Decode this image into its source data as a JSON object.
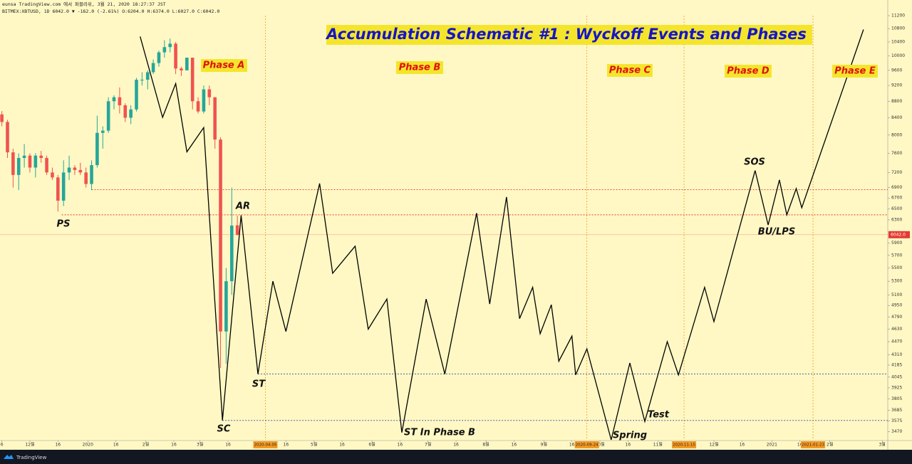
{
  "chart_data": {
    "type": "candlestick",
    "title": "Accumulation Schematic #1 : Wyckoff Events and Phases",
    "header_lines": [
      "eunsa TradingView.com 에서 퍼블리쉬, 3월 21, 2020 18:27:37 JST",
      "BITMEX:XBTUSD, 1D 6042.0 ▼ -162.0 (-2.61%) O:6204.0 H:6374.0 L:6027.0 C:6042.0"
    ],
    "ylog": true,
    "xlim": [
      "2019-11-15",
      "2021-03-04"
    ],
    "ylim": [
      3390,
      11200
    ],
    "yticks": [
      3470,
      3575,
      3685,
      3805,
      3925,
      4045,
      4185,
      4310,
      4470,
      4630,
      4790,
      4950,
      5100,
      5300,
      5500,
      5700,
      5900,
      6300,
      6500,
      6700,
      6900,
      7200,
      7600,
      8000,
      8400,
      8800,
      9200,
      9600,
      10000,
      10400,
      10800,
      11200
    ],
    "xticks": [
      {
        "value": "2019-11-16",
        "label": "6"
      },
      {
        "value": "2019-12-01",
        "label": "12월"
      },
      {
        "value": "2019-12-16",
        "label": "16"
      },
      {
        "value": "2020-01-01",
        "label": "2020"
      },
      {
        "value": "2020-01-16",
        "label": "16"
      },
      {
        "value": "2020-02-01",
        "label": "2월"
      },
      {
        "value": "2020-02-16",
        "label": "16"
      },
      {
        "value": "2020-03-01",
        "label": "3월"
      },
      {
        "value": "2020-03-16",
        "label": "16"
      },
      {
        "value": "2020-04-16",
        "label": "16"
      },
      {
        "value": "2020-05-01",
        "label": "5월"
      },
      {
        "value": "2020-05-16",
        "label": "16"
      },
      {
        "value": "2020-06-01",
        "label": "6월"
      },
      {
        "value": "2020-06-16",
        "label": "16"
      },
      {
        "value": "2020-07-01",
        "label": "7월"
      },
      {
        "value": "2020-07-16",
        "label": "16"
      },
      {
        "value": "2020-08-01",
        "label": "8월"
      },
      {
        "value": "2020-08-16",
        "label": "16"
      },
      {
        "value": "2020-09-01",
        "label": "9월"
      },
      {
        "value": "2020-09-16",
        "label": "16"
      },
      {
        "value": "2020-10-01",
        "label": "10월"
      },
      {
        "value": "2020-10-16",
        "label": "16"
      },
      {
        "value": "2020-11-01",
        "label": "11월"
      },
      {
        "value": "2020-12-01",
        "label": "12월"
      },
      {
        "value": "2020-12-16",
        "label": "16"
      },
      {
        "value": "2021-01-01",
        "label": "2021"
      },
      {
        "value": "2021-01-16",
        "label": "16"
      },
      {
        "value": "2021-02-01",
        "label": "2월"
      },
      {
        "value": "2021-03-01",
        "label": "3월"
      }
    ],
    "phase_boundaries": [
      "2020-04-05",
      "2020-09-24",
      "2020-11-15",
      "2021-01-23"
    ],
    "phases": [
      "Phase A",
      "Phase B",
      "Phase C",
      "Phase D",
      "Phase E"
    ],
    "events": [
      "PS",
      "AR",
      "SC",
      "ST",
      "ST In Phase B",
      "Spring",
      "Test",
      "SOS",
      "BU/LPS"
    ],
    "last_price": {
      "value": 6042,
      "label": "6042.0"
    },
    "up_color": "#26a69a",
    "down_color": "#ef5350",
    "candles": [
      {
        "date": "2019-11-16",
        "open": 8480,
        "high": 8560,
        "low": 8200,
        "close": 8300
      },
      {
        "date": "2019-11-19",
        "open": 8300,
        "high": 8350,
        "low": 7500,
        "close": 7620
      },
      {
        "date": "2019-11-22",
        "open": 7620,
        "high": 7700,
        "low": 6900,
        "close": 7150
      },
      {
        "date": "2019-11-25",
        "open": 7150,
        "high": 7600,
        "low": 6850,
        "close": 7500
      },
      {
        "date": "2019-11-28",
        "open": 7500,
        "high": 7800,
        "low": 7300,
        "close": 7550
      },
      {
        "date": "2019-12-01",
        "open": 7550,
        "high": 7600,
        "low": 7200,
        "close": 7300
      },
      {
        "date": "2019-12-04",
        "open": 7300,
        "high": 7600,
        "low": 7100,
        "close": 7550
      },
      {
        "date": "2019-12-07",
        "open": 7550,
        "high": 7650,
        "low": 7400,
        "close": 7500
      },
      {
        "date": "2019-12-10",
        "open": 7500,
        "high": 7550,
        "low": 7150,
        "close": 7200
      },
      {
        "date": "2019-12-13",
        "open": 7200,
        "high": 7300,
        "low": 7050,
        "close": 7100
      },
      {
        "date": "2019-12-16",
        "open": 7100,
        "high": 7150,
        "low": 6450,
        "close": 6650
      },
      {
        "date": "2019-12-19",
        "open": 6650,
        "high": 7450,
        "low": 6550,
        "close": 7200
      },
      {
        "date": "2019-12-22",
        "open": 7200,
        "high": 7550,
        "low": 7050,
        "close": 7300
      },
      {
        "date": "2019-12-25",
        "open": 7300,
        "high": 7350,
        "low": 7150,
        "close": 7250
      },
      {
        "date": "2019-12-28",
        "open": 7250,
        "high": 7400,
        "low": 7150,
        "close": 7200
      },
      {
        "date": "2019-12-31",
        "open": 7200,
        "high": 7300,
        "low": 6900,
        "close": 6970
      },
      {
        "date": "2020-01-03",
        "open": 6970,
        "high": 7450,
        "low": 6850,
        "close": 7350
      },
      {
        "date": "2020-01-06",
        "open": 7350,
        "high": 8450,
        "low": 7300,
        "close": 8050
      },
      {
        "date": "2020-01-09",
        "open": 8050,
        "high": 8200,
        "low": 7700,
        "close": 8100
      },
      {
        "date": "2020-01-12",
        "open": 8100,
        "high": 8900,
        "low": 8050,
        "close": 8800
      },
      {
        "date": "2020-01-15",
        "open": 8800,
        "high": 8950,
        "low": 8600,
        "close": 8900
      },
      {
        "date": "2020-01-18",
        "open": 8900,
        "high": 9150,
        "low": 8500,
        "close": 8700
      },
      {
        "date": "2020-01-21",
        "open": 8700,
        "high": 8750,
        "low": 8300,
        "close": 8400
      },
      {
        "date": "2020-01-24",
        "open": 8400,
        "high": 8700,
        "low": 8250,
        "close": 8600
      },
      {
        "date": "2020-01-27",
        "open": 8600,
        "high": 9400,
        "low": 8550,
        "close": 9350
      },
      {
        "date": "2020-01-30",
        "open": 9350,
        "high": 9550,
        "low": 9200,
        "close": 9350
      },
      {
        "date": "2020-02-02",
        "open": 9350,
        "high": 9600,
        "low": 9100,
        "close": 9550
      },
      {
        "date": "2020-02-05",
        "open": 9550,
        "high": 9900,
        "low": 9500,
        "close": 9800
      },
      {
        "date": "2020-02-08",
        "open": 9800,
        "high": 10150,
        "low": 9700,
        "close": 10100
      },
      {
        "date": "2020-02-11",
        "open": 10100,
        "high": 10450,
        "low": 9950,
        "close": 10250
      },
      {
        "date": "2020-02-14",
        "open": 10250,
        "high": 10500,
        "low": 10100,
        "close": 10350
      },
      {
        "date": "2020-02-17",
        "open": 10350,
        "high": 10400,
        "low": 9500,
        "close": 9650
      },
      {
        "date": "2020-02-20",
        "open": 9650,
        "high": 9700,
        "low": 9450,
        "close": 9600
      },
      {
        "date": "2020-02-23",
        "open": 9600,
        "high": 9950,
        "low": 9600,
        "close": 9950
      },
      {
        "date": "2020-02-26",
        "open": 9950,
        "high": 9950,
        "low": 8600,
        "close": 8800
      },
      {
        "date": "2020-02-29",
        "open": 8800,
        "high": 8900,
        "low": 8500,
        "close": 8550
      },
      {
        "date": "2020-03-03",
        "open": 8550,
        "high": 9200,
        "low": 8500,
        "close": 9100
      },
      {
        "date": "2020-03-06",
        "open": 9100,
        "high": 9200,
        "low": 8700,
        "close": 8900
      },
      {
        "date": "2020-03-09",
        "open": 8900,
        "high": 8900,
        "low": 7700,
        "close": 7900
      },
      {
        "date": "2020-03-12",
        "open": 7900,
        "high": 7950,
        "low": 4150,
        "close": 4600
      },
      {
        "date": "2020-03-15",
        "open": 4600,
        "high": 5500,
        "low": 4200,
        "close": 5300
      },
      {
        "date": "2020-03-18",
        "open": 5300,
        "high": 6900,
        "low": 5100,
        "close": 6200
      },
      {
        "date": "2020-03-21",
        "open": 6204,
        "high": 6374,
        "low": 6027,
        "close": 6042
      }
    ],
    "schematic": {
      "color": "#000000",
      "x": [
        "2020-01-29",
        "2020-02-10",
        "2020-02-17",
        "2020-02-23",
        "2020-03-03",
        "2020-03-13",
        "2020-03-23",
        "2020-04-01",
        "2020-04-09",
        "2020-04-16",
        "2020-05-04",
        "2020-05-11",
        "2020-05-23",
        "2020-05-30",
        "2020-06-09",
        "2020-06-17",
        "2020-06-30",
        "2020-07-10",
        "2020-07-27",
        "2020-08-03",
        "2020-08-12",
        "2020-08-19",
        "2020-08-26",
        "2020-08-30",
        "2020-09-05",
        "2020-09-09",
        "2020-09-16",
        "2020-09-18",
        "2020-09-24",
        "2020-10-07",
        "2020-10-17",
        "2020-10-25",
        "2020-11-06",
        "2020-11-12",
        "2020-11-26",
        "2020-12-01",
        "2020-12-23",
        "2020-12-30",
        "2021-01-05",
        "2021-01-09",
        "2021-01-14",
        "2021-01-17",
        "2021-02-19"
      ],
      "values": [
        10560,
        8410,
        9250,
        7630,
        8170,
        3580,
        6380,
        4080,
        5300,
        4600,
        6980,
        5420,
        5850,
        4630,
        5040,
        3460,
        5040,
        4080,
        6420,
        4970,
        6720,
        4770,
        5210,
        4570,
        4960,
        4230,
        4540,
        4070,
        4380,
        3390,
        4210,
        3570,
        4470,
        4070,
        5210,
        4730,
        7240,
        6210,
        7050,
        6390,
        6880,
        6520,
        10770
      ]
    },
    "levels": [
      {
        "value": 6860,
        "from": "2020-01-03",
        "color": "#e53935"
      },
      {
        "value": 6390,
        "from": "2019-12-18",
        "color": "#e53935"
      },
      {
        "value": 4080,
        "from": "2020-04-01",
        "color": "#3949ab"
      },
      {
        "value": 3580,
        "from": "2020-03-13",
        "color": "#3949ab"
      }
    ]
  }
}
